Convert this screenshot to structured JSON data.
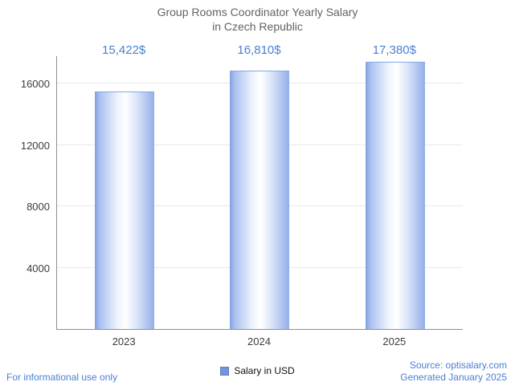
{
  "title": {
    "line1": "Group Rooms Coordinator Yearly Salary",
    "line2": "in Czech Republic"
  },
  "legend": {
    "label": "Salary in USD",
    "color": "#7495dc"
  },
  "footer": {
    "left": "For informational use only",
    "source": "Source: optisalary.com",
    "generated": "Generated January 2025"
  },
  "colors": {
    "bar_edge": "#86a8e8",
    "bar_center": "#ffffff",
    "value_label": "#4a7fd6",
    "title_text": "#5f6368",
    "axis": "#8f8f8f",
    "gridline": "#e8e8e8",
    "footer_blue": "#4a7fd6"
  },
  "chart_data": {
    "type": "bar",
    "title": "Group Rooms Coordinator Yearly Salary in Czech Republic",
    "categories": [
      "2023",
      "2024",
      "2025"
    ],
    "values": [
      15422,
      16810,
      17380
    ],
    "value_labels": [
      "15,422$",
      "16,810$",
      "17,380$"
    ],
    "series_name": "Salary in USD",
    "xlabel": "",
    "ylabel": "",
    "yticks": [
      4000,
      8000,
      12000,
      16000
    ],
    "ytick_labels": [
      "4000",
      "8000",
      "12000",
      "16000"
    ],
    "ylim": [
      0,
      17800
    ],
    "grid": true,
    "legend_position": "bottom"
  }
}
